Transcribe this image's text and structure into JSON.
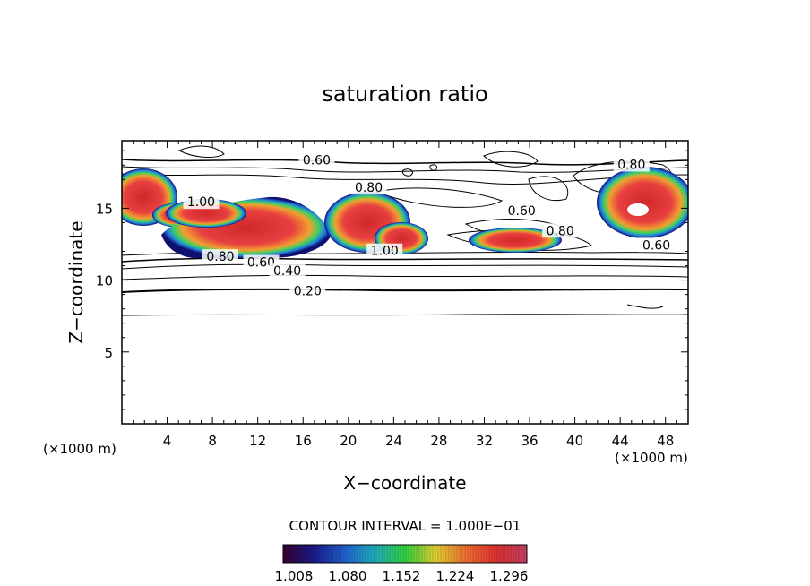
{
  "chart_data": {
    "type": "contour",
    "title": "saturation ratio",
    "xlabel": "X−coordinate",
    "ylabel": "Z−coordinate",
    "x_unit_left": "(×1000 m)",
    "x_unit_right": "(×1000 m)",
    "xlim": [
      0,
      50
    ],
    "ylim": [
      0,
      19.7
    ],
    "x_ticks": [
      4,
      8,
      12,
      16,
      20,
      24,
      28,
      32,
      36,
      40,
      44,
      48
    ],
    "y_ticks": [
      5,
      10,
      15
    ],
    "contour_interval_text": "CONTOUR INTERVAL = 1.000E−01",
    "colorbar": {
      "labels": [
        "1.008",
        "1.080",
        "1.152",
        "1.224",
        "1.296"
      ],
      "colors": [
        "#3a0030",
        "#1a1a8a",
        "#2060d0",
        "#20b0c0",
        "#30d040",
        "#e0d030",
        "#f07030",
        "#e03030",
        "#c04060"
      ]
    },
    "contour_labels": [
      {
        "text": "0.60",
        "x": 17.2,
        "z": 18.1
      },
      {
        "text": "0.80",
        "x": 21.8,
        "z": 16.2
      },
      {
        "text": "1.00",
        "x": 7.0,
        "z": 15.2
      },
      {
        "text": "0.80",
        "x": 8.7,
        "z": 11.4
      },
      {
        "text": "0.60",
        "x": 12.3,
        "z": 11.0
      },
      {
        "text": "0.40",
        "x": 14.6,
        "z": 10.4
      },
      {
        "text": "0.20",
        "x": 16.4,
        "z": 9.0
      },
      {
        "text": "1.00",
        "x": 23.2,
        "z": 11.8
      },
      {
        "text": "0.60",
        "x": 35.3,
        "z": 14.6
      },
      {
        "text": "0.80",
        "x": 38.7,
        "z": 13.2
      },
      {
        "text": "0.80",
        "x": 45.0,
        "z": 17.8
      },
      {
        "text": "0.60",
        "x": 47.2,
        "z": 12.2
      }
    ]
  }
}
